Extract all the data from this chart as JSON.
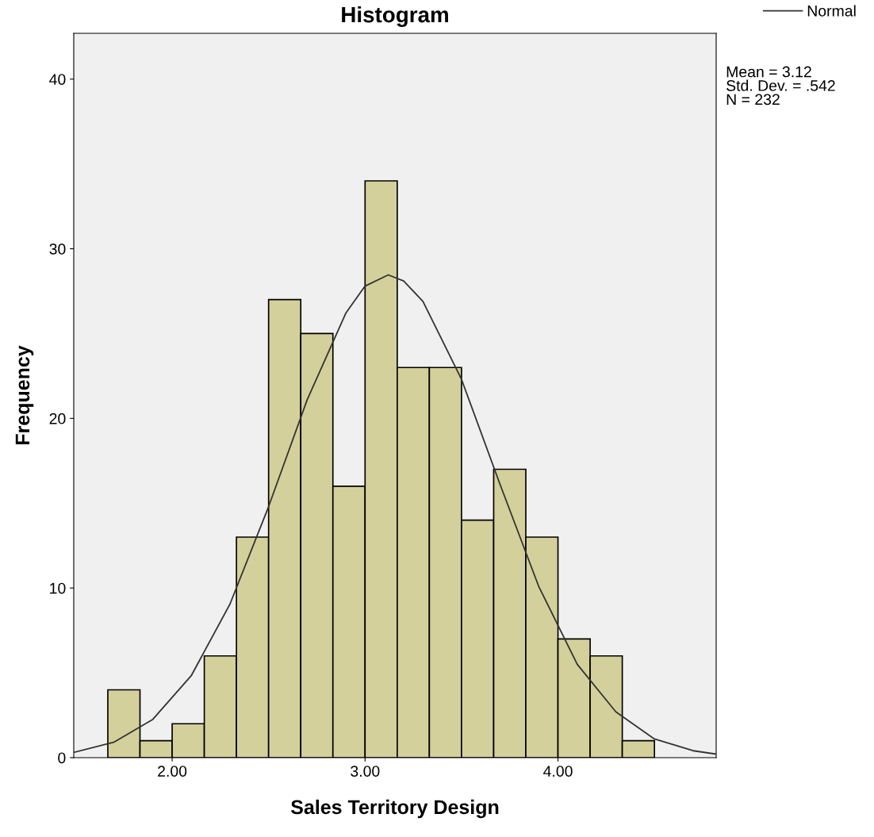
{
  "chart_data": {
    "type": "histogram",
    "title": "Histogram",
    "xlabel": "Sales Territory Design",
    "ylabel": "Frequency",
    "bins": [
      1.6667,
      1.8333,
      2.0,
      2.1667,
      2.3333,
      2.5,
      2.6667,
      2.8333,
      3.0,
      3.1667,
      3.3333,
      3.5,
      3.6667,
      3.8333,
      4.0,
      4.1667,
      4.3333,
      4.5
    ],
    "series": [
      {
        "color": "#d4d09b",
        "values": [
          4,
          1,
          2,
          6,
          13,
          27,
          25,
          16,
          34,
          23,
          23,
          14,
          17,
          13,
          7,
          6,
          1
        ]
      },
      {
        "type": "line",
        "name": "Normal",
        "color": "#333333",
        "x": [
          1.49,
          1.7,
          1.9,
          2.1,
          2.3,
          2.5,
          2.7,
          2.9,
          3.0,
          3.12,
          3.2,
          3.3,
          3.5,
          3.7,
          3.9,
          4.1,
          4.3,
          4.5,
          4.7,
          4.82
        ],
        "values": [
          0.31,
          0.92,
          2.26,
          4.85,
          9.06,
          14.8,
          21.1,
          26.2,
          27.8,
          28.46,
          28.1,
          26.9,
          22.3,
          16.1,
          10.1,
          5.5,
          2.7,
          1.1,
          0.41,
          0.21
        ]
      }
    ],
    "xlim": [
      1.49,
      4.82
    ],
    "ylim": [
      0,
      42.7
    ],
    "xticks": [
      {
        "value": 2,
        "label": "2.00"
      },
      {
        "value": 3,
        "label": "3.00"
      },
      {
        "value": 4,
        "label": "4.00"
      }
    ],
    "yticks": [
      0,
      10,
      20,
      30,
      40
    ],
    "grid": false,
    "legend": "top right",
    "annotations": [
      "Mean = 3.12\nStd. Dev. = .542\nN = 232"
    ]
  }
}
